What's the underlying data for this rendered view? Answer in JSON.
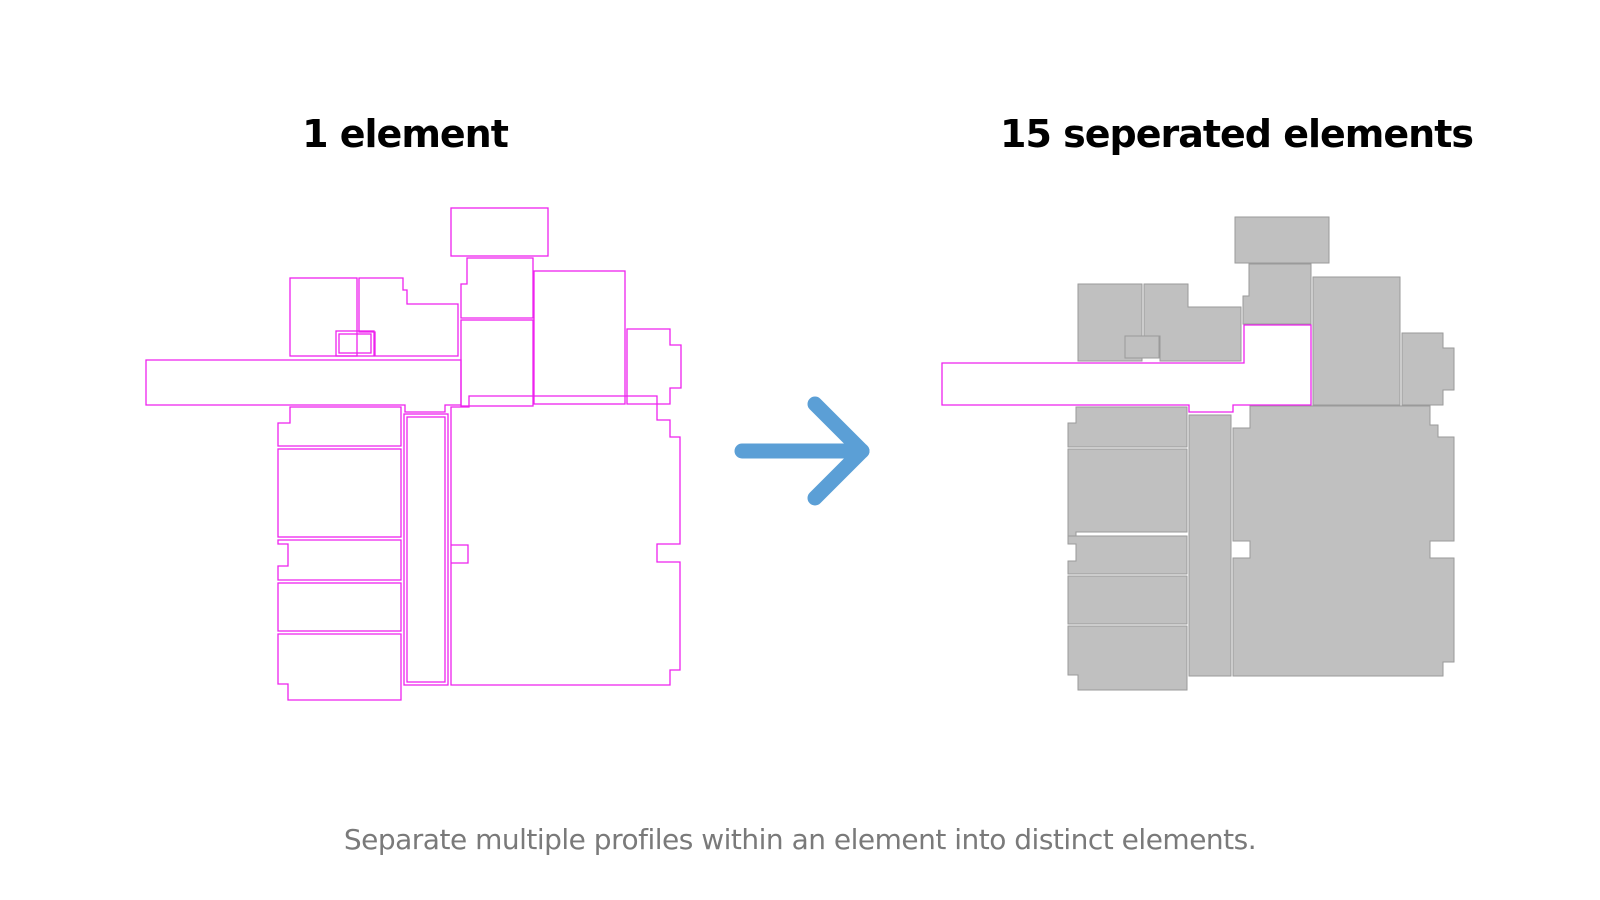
{
  "left_panel": {
    "title": "1 element"
  },
  "right_panel": {
    "title": "15 seperated elements"
  },
  "caption": "Separate multiple profiles within an element into distinct elements.",
  "colors": {
    "outline": "#ee22ee",
    "fill": "#c0c0c0",
    "fill_stroke": "#9a9a9a",
    "arrow": "#5b9fd6",
    "caption": "#7a7a7a"
  }
}
